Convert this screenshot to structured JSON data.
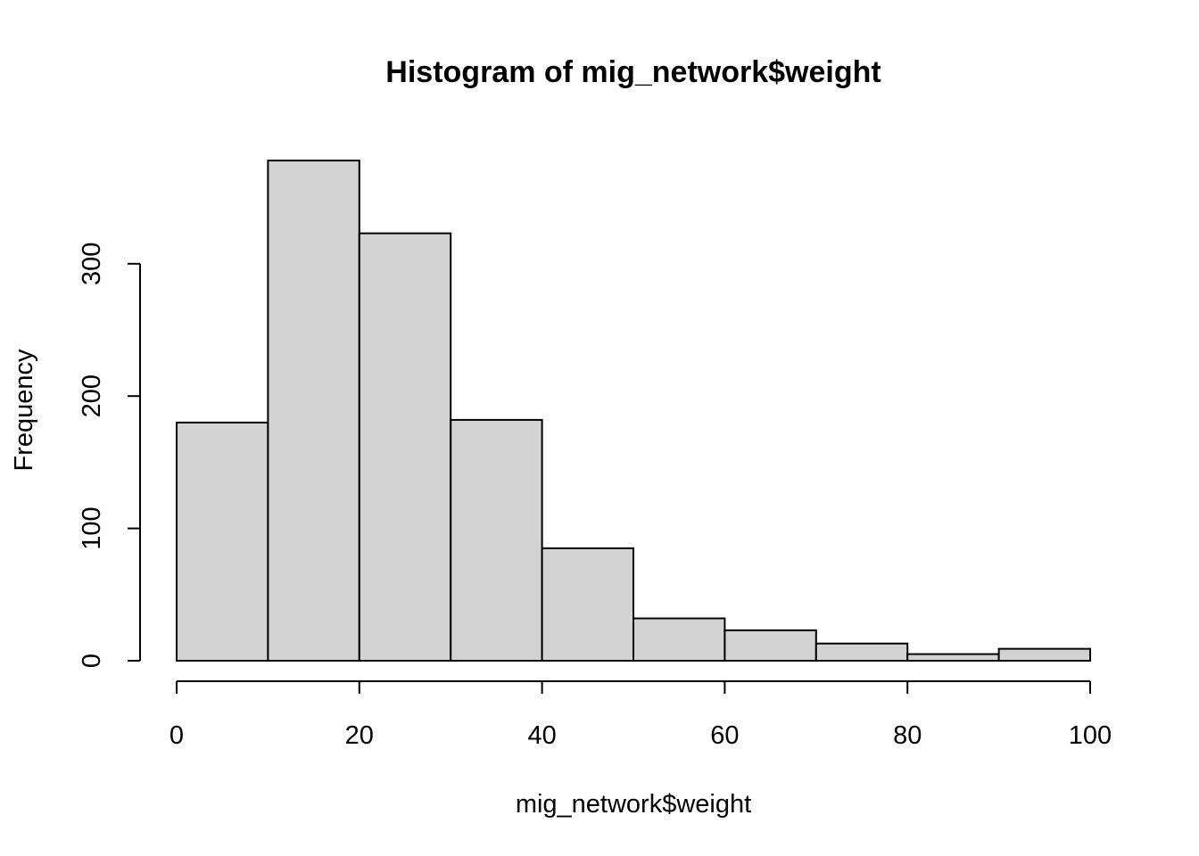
{
  "chart_data": {
    "type": "bar",
    "subtype": "histogram",
    "title": "Histogram of mig_network$weight",
    "xlabel": "mig_network$weight",
    "ylabel": "Frequency",
    "bins": [
      {
        "start": 0,
        "end": 10,
        "count": 180
      },
      {
        "start": 10,
        "end": 20,
        "count": 378
      },
      {
        "start": 20,
        "end": 30,
        "count": 323
      },
      {
        "start": 30,
        "end": 40,
        "count": 182
      },
      {
        "start": 40,
        "end": 50,
        "count": 85
      },
      {
        "start": 50,
        "end": 60,
        "count": 32
      },
      {
        "start": 60,
        "end": 70,
        "count": 23
      },
      {
        "start": 70,
        "end": 80,
        "count": 13
      },
      {
        "start": 80,
        "end": 90,
        "count": 5
      },
      {
        "start": 90,
        "end": 100,
        "count": 9
      }
    ],
    "xlim": [
      0,
      100
    ],
    "ylim": [
      0,
      378
    ],
    "x_ticks": [
      "0",
      "20",
      "40",
      "60",
      "80",
      "100"
    ],
    "y_ticks": [
      "0",
      "100",
      "200",
      "300"
    ],
    "bar_fill": "#d3d3d3",
    "bar_stroke": "#000000",
    "grid": false,
    "legend": "none"
  }
}
